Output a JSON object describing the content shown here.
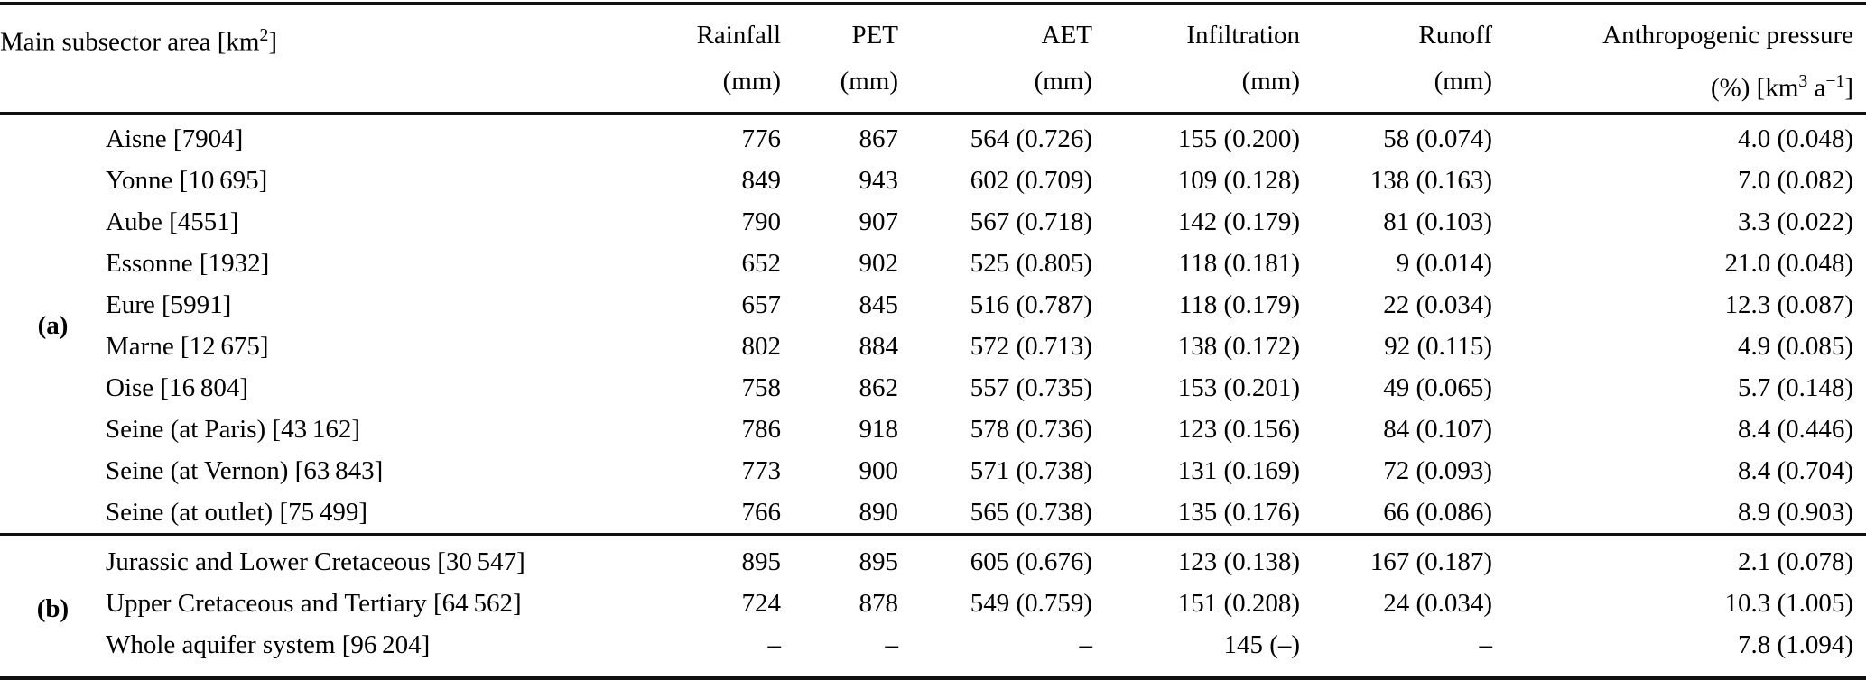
{
  "colors": {
    "background": "#ffffff",
    "text": "#000000",
    "rule": "#111111"
  },
  "table": {
    "header": {
      "main": {
        "pre": "Main subsector area [km",
        "sup": "2",
        "post": "]"
      },
      "cols": [
        {
          "line1": "Rainfall",
          "line2": "(mm)"
        },
        {
          "line1": "PET",
          "line2": "(mm)"
        },
        {
          "line1": "AET",
          "line2": "(mm)"
        },
        {
          "line1": "Infiltration",
          "line2": "(mm)"
        },
        {
          "line1": "Runoff",
          "line2": "(mm)"
        }
      ],
      "anthro": {
        "line1": "Anthropogenic pressure",
        "unit_pre": "(%) [km",
        "unit_sup1": "3",
        "unit_mid": " a",
        "unit_sup2": "−1",
        "unit_post": "]"
      }
    },
    "sections": [
      {
        "label": "(a)",
        "rows": [
          {
            "name": "Aisne [7904]",
            "values": [
              "776",
              "867",
              "564 (0.726)",
              "155 (0.200)",
              "58 (0.074)",
              "4.0 (0.048)"
            ]
          },
          {
            "name": "Yonne [10 695]",
            "values": [
              "849",
              "943",
              "602 (0.709)",
              "109 (0.128)",
              "138 (0.163)",
              "7.0 (0.082)"
            ]
          },
          {
            "name": "Aube [4551]",
            "values": [
              "790",
              "907",
              "567 (0.718)",
              "142 (0.179)",
              "81 (0.103)",
              "3.3 (0.022)"
            ]
          },
          {
            "name": "Essonne [1932]",
            "values": [
              "652",
              "902",
              "525 (0.805)",
              "118 (0.181)",
              "9 (0.014)",
              "21.0 (0.048)"
            ]
          },
          {
            "name": "Eure [5991]",
            "values": [
              "657",
              "845",
              "516 (0.787)",
              "118 (0.179)",
              "22 (0.034)",
              "12.3 (0.087)"
            ]
          },
          {
            "name": "Marne [12 675]",
            "values": [
              "802",
              "884",
              "572 (0.713)",
              "138 (0.172)",
              "92 (0.115)",
              "4.9 (0.085)"
            ]
          },
          {
            "name": "Oise [16 804]",
            "values": [
              "758",
              "862",
              "557 (0.735)",
              "153 (0.201)",
              "49 (0.065)",
              "5.7 (0.148)"
            ]
          },
          {
            "name": "Seine (at Paris) [43 162]",
            "values": [
              "786",
              "918",
              "578 (0.736)",
              "123 (0.156)",
              "84 (0.107)",
              "8.4 (0.446)"
            ]
          },
          {
            "name": "Seine (at Vernon) [63 843]",
            "values": [
              "773",
              "900",
              "571 (0.738)",
              "131 (0.169)",
              "72 (0.093)",
              "8.4 (0.704)"
            ]
          },
          {
            "name": "Seine (at outlet) [75 499]",
            "values": [
              "766",
              "890",
              "565 (0.738)",
              "135 (0.176)",
              "66 (0.086)",
              "8.9 (0.903)"
            ]
          }
        ]
      },
      {
        "label": "(b)",
        "rows": [
          {
            "name": "Jurassic and Lower Cretaceous [30 547]",
            "values": [
              "895",
              "895",
              "605 (0.676)",
              "123 (0.138)",
              "167 (0.187)",
              "2.1 (0.078)"
            ]
          },
          {
            "name": "Upper Cretaceous and Tertiary [64 562]",
            "values": [
              "724",
              "878",
              "549 (0.759)",
              "151 (0.208)",
              "24 (0.034)",
              "10.3 (1.005)"
            ]
          },
          {
            "name": "Whole aquifer system [96 204]",
            "values": [
              "–",
              "–",
              "–",
              "145 (–)",
              "–",
              "7.8 (1.094)"
            ]
          }
        ]
      }
    ]
  }
}
